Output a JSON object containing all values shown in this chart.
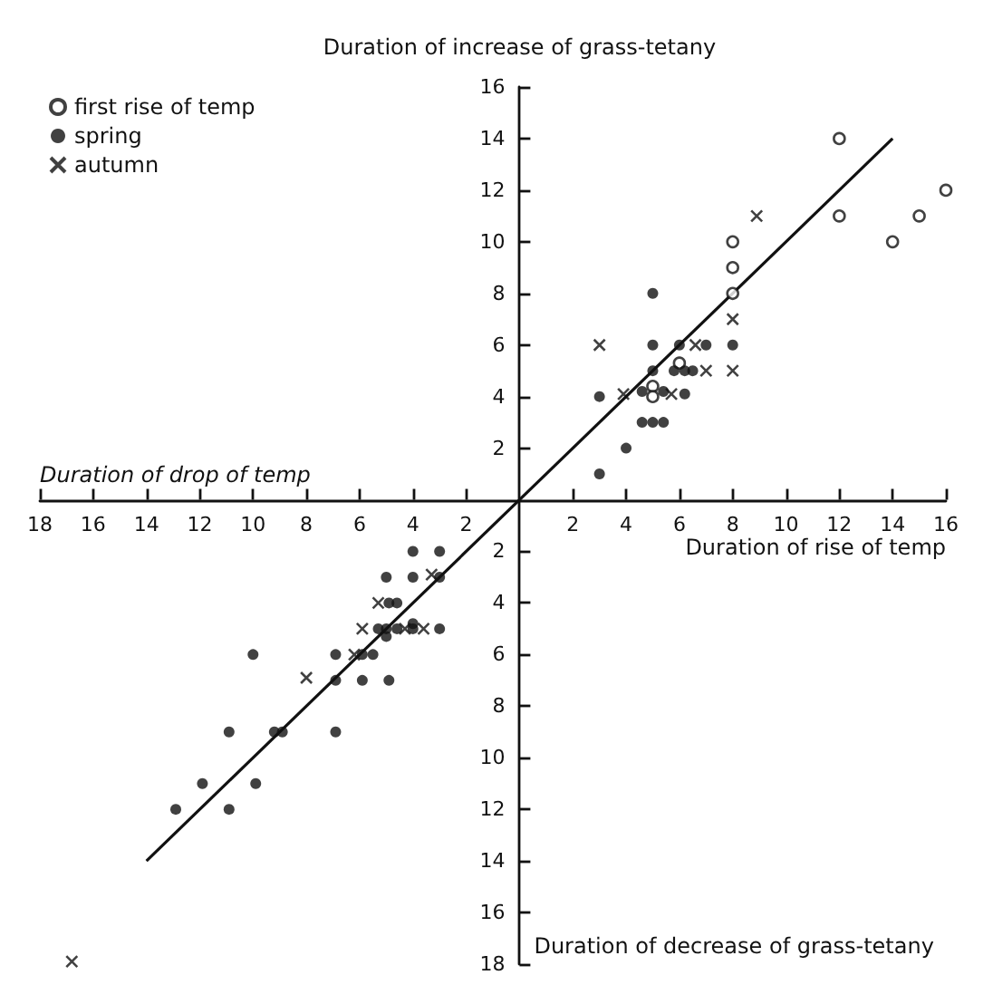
{
  "chart_data": {
    "type": "scatter",
    "ylabel": "Duration of increase of grass-tetany",
    "xlabel": "Duration of rise of temp",
    "annotations": [
      "Duration of drop of temp",
      "Duration of decrease of grass-tetany"
    ],
    "xlim": [
      -18,
      16
    ],
    "ylim": [
      -18,
      16
    ],
    "xticks": [
      {
        "value": -18,
        "label": "18"
      },
      {
        "value": -16,
        "label": "16"
      },
      {
        "value": -14,
        "label": "14"
      },
      {
        "value": -12,
        "label": "12"
      },
      {
        "value": -10,
        "label": "10"
      },
      {
        "value": -8,
        "label": "8"
      },
      {
        "value": -6,
        "label": "6"
      },
      {
        "value": -4,
        "label": "4"
      },
      {
        "value": -2,
        "label": "2"
      },
      2,
      4,
      6,
      8,
      10,
      12,
      14,
      16
    ],
    "yticks": [
      {
        "value": -18,
        "label": "18"
      },
      {
        "value": -16,
        "label": "16"
      },
      {
        "value": -14,
        "label": "14"
      },
      {
        "value": -12,
        "label": "12"
      },
      {
        "value": -10,
        "label": "10"
      },
      {
        "value": -8,
        "label": "8"
      },
      {
        "value": -6,
        "label": "6"
      },
      {
        "value": -4,
        "label": "4"
      },
      {
        "value": -2,
        "label": "2"
      },
      2,
      4,
      6,
      8,
      10,
      12,
      14,
      16
    ],
    "grid": false,
    "legend": "top left",
    "series": [
      {
        "name": "first rise of temp",
        "color": "#111111",
        "marker": "open circle",
        "x": [
          12,
          12,
          8,
          8,
          8,
          15,
          16,
          14,
          6,
          5,
          5
        ],
        "values": [
          14,
          11,
          10,
          9,
          8,
          11,
          12,
          10,
          5.3,
          4.4,
          4
        ]
      },
      {
        "name": "spring",
        "color": "#111111",
        "marker": "circle",
        "x": [
          3,
          3,
          4,
          5,
          5,
          5,
          4.6,
          5.4,
          4.6,
          5,
          5.4,
          6,
          5.8,
          6.2,
          6.5,
          6.2,
          7,
          8,
          -4,
          -3,
          -5,
          -4,
          -3,
          -4.9,
          -4.6,
          -5.3,
          -5,
          -4.6,
          -5,
          -4,
          -4,
          -3,
          -6.9,
          -5.9,
          -5.5,
          -10,
          -6.9,
          -5.9,
          -4.9,
          -10.9,
          -9.2,
          -8.9,
          -6.9,
          -11.9,
          -9.9,
          -12.9,
          -10.9
        ],
        "values": [
          4,
          1,
          2,
          8,
          6,
          5,
          4.2,
          4.2,
          3,
          3,
          3,
          6,
          5,
          5,
          5,
          4.1,
          6,
          6,
          -2,
          -2,
          -3,
          -3,
          -3,
          -4,
          -4,
          -5,
          -5,
          -5,
          -5.3,
          -4.8,
          -5,
          -5,
          -6,
          -6,
          -6,
          -6,
          -7,
          -7,
          -7,
          -9,
          -9,
          -9,
          -9,
          -11,
          -11,
          -12,
          -12
        ]
      },
      {
        "name": "autumn",
        "color": "#111111",
        "marker": "cross",
        "x": [
          3,
          3.9,
          5.7,
          6.6,
          7,
          8,
          8,
          8.9,
          -3.3,
          -5.3,
          -5.9,
          -4.3,
          -3.6,
          -6.2,
          -8,
          -16.8
        ],
        "values": [
          6,
          4.1,
          4.1,
          6,
          5,
          7,
          5,
          11,
          -2.9,
          -4,
          -5,
          -5,
          -5,
          -6,
          -6.9,
          -17.9
        ]
      },
      {
        "type": "line",
        "color": "#111111",
        "line_style": "solid",
        "marker": "none",
        "x": [
          -14,
          14
        ],
        "values": [
          -14,
          14
        ]
      }
    ]
  }
}
